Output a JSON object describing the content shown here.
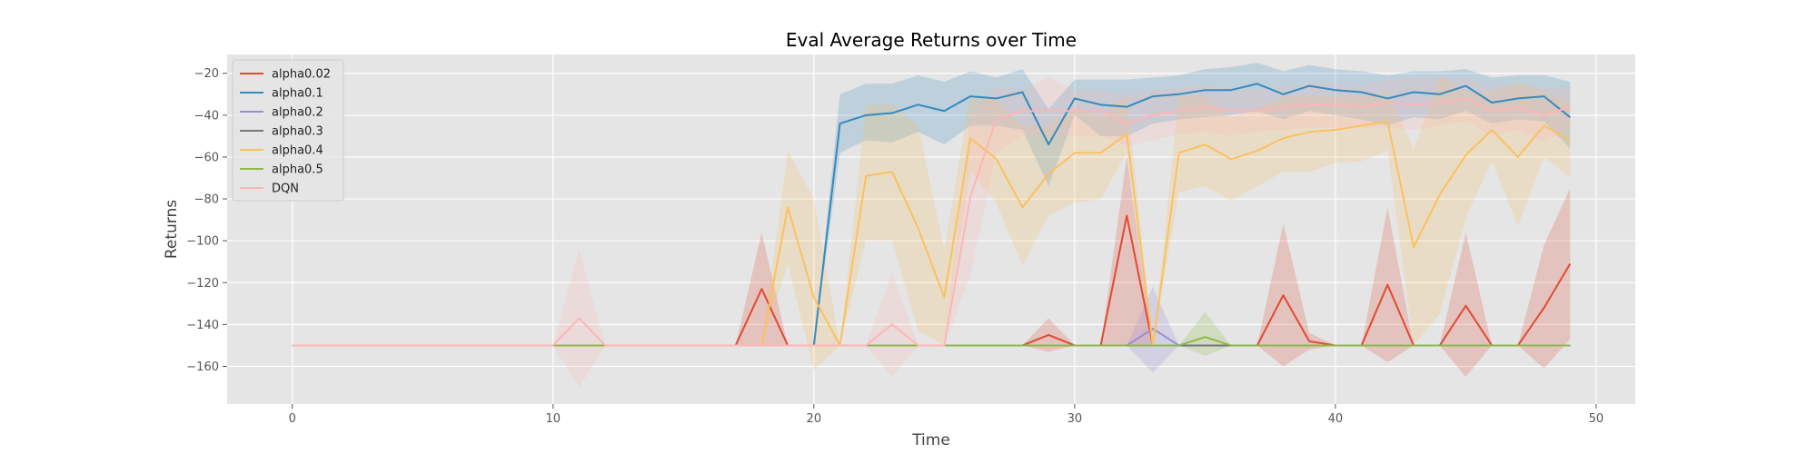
{
  "chart_data": {
    "type": "line",
    "title": "Eval Average Returns over Time",
    "xlabel": "Time",
    "ylabel": "Returns",
    "xlim": [
      -2.5,
      51.5
    ],
    "ylim": [
      -178,
      -11
    ],
    "xticks": [
      0,
      10,
      20,
      30,
      40,
      50
    ],
    "yticks": [
      -160,
      -140,
      -120,
      -100,
      -80,
      -60,
      -40,
      -20
    ],
    "grid": true,
    "legend_position": "top-left",
    "background": "#e5e5e5",
    "series": [
      {
        "name": "alpha0.02",
        "color": "#e24a33",
        "points": [
          [
            0,
            -150
          ],
          [
            17,
            -150
          ],
          [
            18,
            -123
          ],
          [
            19,
            -150
          ],
          [
            28,
            -150
          ],
          [
            29,
            -145
          ],
          [
            30,
            -150
          ],
          [
            31,
            -150
          ],
          [
            32,
            -88
          ],
          [
            33,
            -150
          ],
          [
            37,
            -150
          ],
          [
            38,
            -126
          ],
          [
            39,
            -148
          ],
          [
            40,
            -150
          ],
          [
            41,
            -150
          ],
          [
            42,
            -121
          ],
          [
            43,
            -150
          ],
          [
            44,
            -150
          ],
          [
            45,
            -131
          ],
          [
            46,
            -150
          ],
          [
            47,
            -150
          ],
          [
            48,
            -132
          ],
          [
            49,
            -111
          ]
        ],
        "band": [
          [
            0,
            -150,
            -150
          ],
          [
            17,
            -150,
            -150
          ],
          [
            18,
            -150,
            -96
          ],
          [
            19,
            -150,
            -150
          ],
          [
            28,
            -150,
            -150
          ],
          [
            29,
            -153,
            -137
          ],
          [
            30,
            -150,
            -150
          ],
          [
            31,
            -150,
            -150
          ],
          [
            32,
            -150,
            -60
          ],
          [
            33,
            -150,
            -150
          ],
          [
            37,
            -150,
            -150
          ],
          [
            38,
            -160,
            -92
          ],
          [
            39,
            -152,
            -144
          ],
          [
            40,
            -150,
            -150
          ],
          [
            41,
            -150,
            -150
          ],
          [
            42,
            -158,
            -84
          ],
          [
            43,
            -150,
            -150
          ],
          [
            44,
            -150,
            -150
          ],
          [
            45,
            -165,
            -96
          ],
          [
            46,
            -150,
            -150
          ],
          [
            47,
            -150,
            -150
          ],
          [
            48,
            -161,
            -102
          ],
          [
            49,
            -147,
            -75
          ]
        ]
      },
      {
        "name": "alpha0.1",
        "color": "#348abd",
        "points": [
          [
            0,
            -150
          ],
          [
            20,
            -150
          ],
          [
            21,
            -44
          ],
          [
            22,
            -40
          ],
          [
            23,
            -39
          ],
          [
            24,
            -35
          ],
          [
            25,
            -38
          ],
          [
            26,
            -31
          ],
          [
            27,
            -32
          ],
          [
            28,
            -29
          ],
          [
            29,
            -54
          ],
          [
            30,
            -32
          ],
          [
            31,
            -35
          ],
          [
            32,
            -36
          ],
          [
            33,
            -31
          ],
          [
            34,
            -30
          ],
          [
            35,
            -28
          ],
          [
            36,
            -28
          ],
          [
            37,
            -25
          ],
          [
            38,
            -30
          ],
          [
            39,
            -26
          ],
          [
            40,
            -28
          ],
          [
            41,
            -29
          ],
          [
            42,
            -32
          ],
          [
            43,
            -29
          ],
          [
            44,
            -30
          ],
          [
            45,
            -26
          ],
          [
            46,
            -34
          ],
          [
            47,
            -32
          ],
          [
            48,
            -31
          ],
          [
            49,
            -41
          ]
        ],
        "band": [
          [
            0,
            -150,
            -150
          ],
          [
            20,
            -150,
            -150
          ],
          [
            21,
            -58,
            -30
          ],
          [
            22,
            -52,
            -25
          ],
          [
            23,
            -53,
            -25
          ],
          [
            24,
            -48,
            -21
          ],
          [
            25,
            -54,
            -24
          ],
          [
            26,
            -45,
            -19
          ],
          [
            27,
            -45,
            -22
          ],
          [
            28,
            -47,
            -18
          ],
          [
            29,
            -74,
            -37
          ],
          [
            30,
            -40,
            -23
          ],
          [
            31,
            -50,
            -23
          ],
          [
            32,
            -50,
            -23
          ],
          [
            33,
            -44,
            -22
          ],
          [
            34,
            -42,
            -21
          ],
          [
            35,
            -41,
            -18
          ],
          [
            36,
            -40,
            -17
          ],
          [
            37,
            -38,
            -15
          ],
          [
            38,
            -42,
            -19
          ],
          [
            39,
            -38,
            -16
          ],
          [
            40,
            -40,
            -18
          ],
          [
            41,
            -42,
            -19
          ],
          [
            42,
            -45,
            -21
          ],
          [
            43,
            -41,
            -19
          ],
          [
            44,
            -42,
            -19
          ],
          [
            45,
            -38,
            -18
          ],
          [
            46,
            -44,
            -22
          ],
          [
            47,
            -42,
            -21
          ],
          [
            48,
            -43,
            -21
          ],
          [
            49,
            -56,
            -24
          ]
        ]
      },
      {
        "name": "alpha0.2",
        "color": "#988ed5",
        "points": [
          [
            0,
            -150
          ],
          [
            32,
            -150
          ],
          [
            33,
            -142
          ],
          [
            34,
            -150
          ],
          [
            49,
            -150
          ]
        ],
        "band": [
          [
            0,
            -150,
            -150
          ],
          [
            32,
            -150,
            -150
          ],
          [
            33,
            -163,
            -122
          ],
          [
            34,
            -150,
            -150
          ],
          [
            49,
            -150,
            -150
          ]
        ]
      },
      {
        "name": "alpha0.3",
        "color": "#777777",
        "points": [
          [
            0,
            -150
          ],
          [
            49,
            -150
          ]
        ],
        "band": [
          [
            0,
            -150,
            -150
          ],
          [
            49,
            -150,
            -150
          ]
        ]
      },
      {
        "name": "alpha0.4",
        "color": "#fbc15e",
        "points": [
          [
            0,
            -150
          ],
          [
            18,
            -150
          ],
          [
            19,
            -84
          ],
          [
            20,
            -127
          ],
          [
            21,
            -150
          ],
          [
            22,
            -69
          ],
          [
            23,
            -67
          ],
          [
            24,
            -94
          ],
          [
            25,
            -127
          ],
          [
            26,
            -51
          ],
          [
            27,
            -61
          ],
          [
            28,
            -84
          ],
          [
            29,
            -68
          ],
          [
            30,
            -58
          ],
          [
            31,
            -58
          ],
          [
            32,
            -49
          ],
          [
            33,
            -150
          ],
          [
            34,
            -58
          ],
          [
            35,
            -54
          ],
          [
            36,
            -61
          ],
          [
            37,
            -57
          ],
          [
            38,
            -51
          ],
          [
            39,
            -48
          ],
          [
            40,
            -47
          ],
          [
            41,
            -45
          ],
          [
            42,
            -43
          ],
          [
            43,
            -103
          ],
          [
            44,
            -78
          ],
          [
            45,
            -59
          ],
          [
            46,
            -47
          ],
          [
            47,
            -60
          ],
          [
            48,
            -45
          ],
          [
            49,
            -52
          ]
        ],
        "band": [
          [
            0,
            -150,
            -150
          ],
          [
            18,
            -150,
            -150
          ],
          [
            19,
            -111,
            -57
          ],
          [
            20,
            -162,
            -80
          ],
          [
            21,
            -150,
            -150
          ],
          [
            22,
            -100,
            -35
          ],
          [
            23,
            -100,
            -35
          ],
          [
            24,
            -143,
            -45
          ],
          [
            25,
            -150,
            -104
          ],
          [
            26,
            -67,
            -30
          ],
          [
            27,
            -82,
            -33
          ],
          [
            28,
            -112,
            -45
          ],
          [
            29,
            -88,
            -45
          ],
          [
            30,
            -82,
            -36
          ],
          [
            31,
            -80,
            -40
          ],
          [
            32,
            -58,
            -30
          ],
          [
            33,
            -150,
            -150
          ],
          [
            34,
            -77,
            -31
          ],
          [
            35,
            -74,
            -31
          ],
          [
            36,
            -81,
            -41
          ],
          [
            37,
            -74,
            -37
          ],
          [
            38,
            -67,
            -31
          ],
          [
            39,
            -67,
            -31
          ],
          [
            40,
            -63,
            -31
          ],
          [
            41,
            -62,
            -31
          ],
          [
            42,
            -57,
            -29
          ],
          [
            43,
            -150,
            -56
          ],
          [
            44,
            -135,
            -21
          ],
          [
            45,
            -89,
            -29
          ],
          [
            46,
            -62,
            -29
          ],
          [
            47,
            -93,
            -24
          ],
          [
            48,
            -60,
            -28
          ],
          [
            49,
            -70,
            -34
          ]
        ]
      },
      {
        "name": "alpha0.5",
        "color": "#8eba42",
        "points": [
          [
            0,
            -150
          ],
          [
            34,
            -150
          ],
          [
            35,
            -146
          ],
          [
            36,
            -150
          ],
          [
            49,
            -150
          ]
        ],
        "band": [
          [
            0,
            -150,
            -150
          ],
          [
            34,
            -150,
            -150
          ],
          [
            35,
            -155,
            -134
          ],
          [
            36,
            -150,
            -150
          ],
          [
            49,
            -150,
            -150
          ]
        ]
      },
      {
        "name": "DQN",
        "color": "#ffb5b8",
        "points": [
          [
            0,
            -150
          ],
          [
            10,
            -150
          ],
          [
            11,
            -137
          ],
          [
            12,
            -150
          ],
          [
            22,
            -150
          ],
          [
            23,
            -140
          ],
          [
            24,
            -150
          ],
          [
            25,
            -150
          ],
          [
            26,
            -79
          ],
          [
            27,
            -42
          ],
          [
            28,
            -38
          ],
          [
            29,
            -38
          ],
          [
            30,
            -38
          ],
          [
            31,
            -38
          ],
          [
            32,
            -44
          ],
          [
            33,
            -40
          ],
          [
            34,
            -38
          ],
          [
            35,
            -36
          ],
          [
            36,
            -38
          ],
          [
            37,
            -38
          ],
          [
            38,
            -36
          ],
          [
            39,
            -35
          ],
          [
            40,
            -35
          ],
          [
            41,
            -36
          ],
          [
            42,
            -34
          ],
          [
            43,
            -35
          ],
          [
            44,
            -34
          ],
          [
            45,
            -32
          ],
          [
            46,
            -38
          ],
          [
            47,
            -36
          ],
          [
            48,
            -40
          ],
          [
            49,
            -36
          ]
        ],
        "band": [
          [
            0,
            -150,
            -150
          ],
          [
            10,
            -150,
            -150
          ],
          [
            11,
            -170,
            -104
          ],
          [
            12,
            -150,
            -150
          ],
          [
            22,
            -150,
            -150
          ],
          [
            23,
            -165,
            -115
          ],
          [
            24,
            -150,
            -150
          ],
          [
            25,
            -150,
            -150
          ],
          [
            26,
            -117,
            -40
          ],
          [
            27,
            -58,
            -26
          ],
          [
            28,
            -50,
            -28
          ],
          [
            29,
            -50,
            -22
          ],
          [
            30,
            -50,
            -28
          ],
          [
            31,
            -50,
            -28
          ],
          [
            32,
            -55,
            -30
          ],
          [
            33,
            -52,
            -28
          ],
          [
            34,
            -49,
            -27
          ],
          [
            35,
            -48,
            -26
          ],
          [
            36,
            -50,
            -27
          ],
          [
            37,
            -48,
            -28
          ],
          [
            38,
            -47,
            -26
          ],
          [
            39,
            -46,
            -25
          ],
          [
            40,
            -46,
            -25
          ],
          [
            41,
            -46,
            -26
          ],
          [
            42,
            -46,
            -23
          ],
          [
            43,
            -47,
            -22
          ],
          [
            44,
            -45,
            -22
          ],
          [
            45,
            -43,
            -22
          ],
          [
            46,
            -50,
            -26
          ],
          [
            47,
            -47,
            -26
          ],
          [
            48,
            -53,
            -27
          ],
          [
            49,
            -46,
            -27
          ]
        ]
      }
    ]
  }
}
